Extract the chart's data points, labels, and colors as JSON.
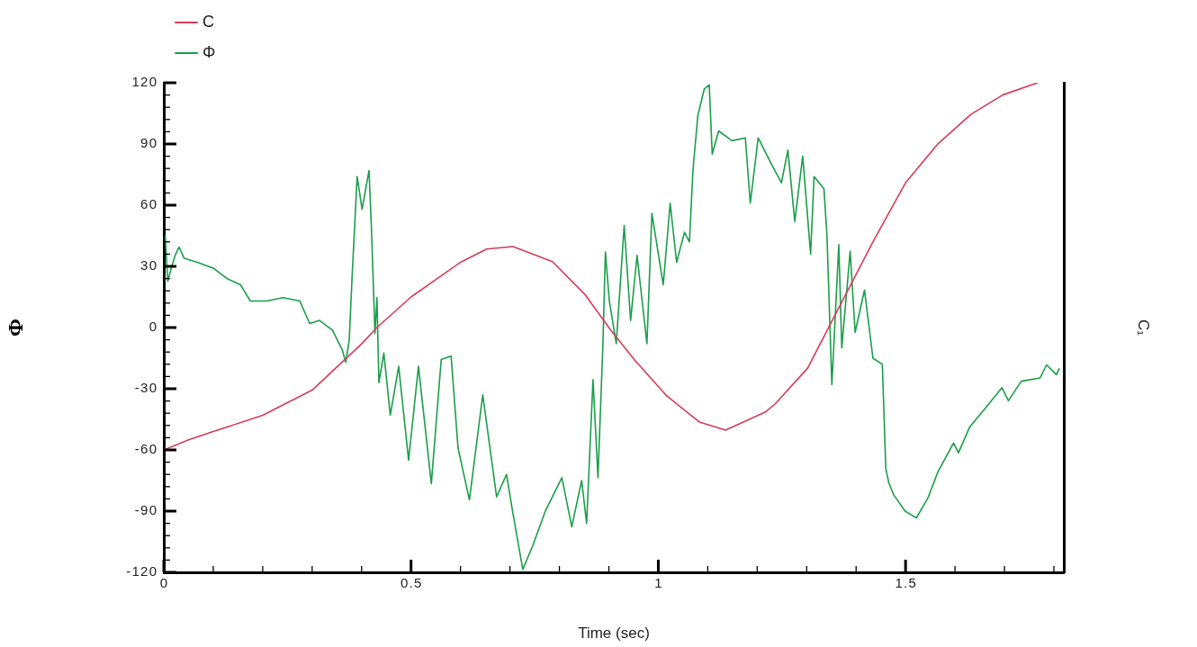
{
  "chart_data": {
    "type": "line",
    "xlabel": "Time (sec)",
    "ylabel": "Φ",
    "y2label": "C₁",
    "xlim": [
      0,
      1.82
    ],
    "xticks": [
      0,
      {
        "value": 0.1,
        "label": null
      },
      {
        "value": 0.2,
        "label": null
      },
      {
        "value": 0.3,
        "label": null
      },
      {
        "value": 0.4,
        "label": null
      },
      0.5,
      {
        "value": 0.6,
        "label": null
      },
      {
        "value": 0.7,
        "label": null
      },
      {
        "value": 0.8,
        "label": null
      },
      {
        "value": 0.9,
        "label": null
      },
      1,
      {
        "value": 1.1,
        "label": null
      },
      {
        "value": 1.2,
        "label": null
      },
      {
        "value": 1.3,
        "label": null
      },
      {
        "value": 1.4,
        "label": null
      },
      1.5,
      {
        "value": 1.6,
        "label": null
      },
      {
        "value": 1.7,
        "label": null
      },
      {
        "value": 1.8,
        "label": null
      }
    ],
    "ylim": [
      -120,
      120
    ],
    "yticks": [
      -120,
      {
        "value": -114,
        "label": null
      },
      {
        "value": -108,
        "label": null
      },
      {
        "value": -102,
        "label": null
      },
      {
        "value": -96,
        "label": null
      },
      -90,
      {
        "value": -84,
        "label": null
      },
      {
        "value": -78,
        "label": null
      },
      {
        "value": -72,
        "label": null
      },
      {
        "value": -66,
        "label": null
      },
      -60,
      {
        "value": -54,
        "label": null
      },
      {
        "value": -48,
        "label": null
      },
      {
        "value": -42,
        "label": null
      },
      {
        "value": -36,
        "label": null
      },
      -30,
      {
        "value": -24,
        "label": null
      },
      {
        "value": -18,
        "label": null
      },
      {
        "value": -12,
        "label": null
      },
      {
        "value": -6,
        "label": null
      },
      0,
      {
        "value": 6,
        "label": null
      },
      {
        "value": 12,
        "label": null
      },
      {
        "value": 18,
        "label": null
      },
      {
        "value": 24,
        "label": null
      },
      30,
      {
        "value": 36,
        "label": null
      },
      {
        "value": 42,
        "label": null
      },
      {
        "value": 48,
        "label": null
      },
      {
        "value": 54,
        "label": null
      },
      60,
      {
        "value": 66,
        "label": null
      },
      {
        "value": 72,
        "label": null
      },
      {
        "value": 78,
        "label": null
      },
      {
        "value": 84,
        "label": null
      },
      90,
      {
        "value": 96,
        "label": null
      },
      {
        "value": 102,
        "label": null
      },
      {
        "value": 108,
        "label": null
      },
      {
        "value": 114,
        "label": null
      },
      120
    ],
    "tick_labels": "xy",
    "legend": "top left",
    "grid": false,
    "marker": "none",
    "line_style": "solid",
    "series": [
      {
        "name": "C",
        "color": "#d63a5a",
        "x": [
          0,
          0.05,
          0.1,
          0.2,
          0.3,
          0.4,
          0.431,
          0.5,
          0.6,
          0.653,
          0.706,
          0.786,
          0.851,
          0.904,
          0.952,
          1.017,
          1.083,
          1.136,
          1.216,
          1.236,
          1.302,
          1.367,
          1.434,
          1.5,
          1.566,
          1.632,
          1.697,
          1.767
        ],
        "values": [
          -60,
          -55,
          -51,
          -43,
          -30.7,
          -8,
          0,
          15,
          32,
          38.5,
          39.7,
          32.3,
          16.4,
          -1.3,
          -15.9,
          -33.5,
          -46.3,
          -50.3,
          -41.5,
          -37.5,
          -19.9,
          10.6,
          42,
          71,
          90.2,
          104.5,
          114.1,
          120
        ]
      },
      {
        "name": "Φ",
        "color": "#1a9e4a",
        "x": [
          0.003,
          0.008,
          0.015,
          0.023,
          0.031,
          0.041,
          0.068,
          0.101,
          0.128,
          0.155,
          0.175,
          0.208,
          0.241,
          0.275,
          0.295,
          0.315,
          0.341,
          0.361,
          0.368,
          0.375,
          0.381,
          0.391,
          0.401,
          0.415,
          0.42,
          0.427,
          0.431,
          0.435,
          0.445,
          0.458,
          0.475,
          0.495,
          0.515,
          0.541,
          0.561,
          0.581,
          0.595,
          0.618,
          0.645,
          0.673,
          0.693,
          0.706,
          0.726,
          0.746,
          0.772,
          0.805,
          0.825,
          0.845,
          0.855,
          0.868,
          0.878,
          0.888,
          0.893,
          0.901,
          0.915,
          0.931,
          0.944,
          0.957,
          0.977,
          0.987,
          1.01,
          1.024,
          1.037,
          1.053,
          1.063,
          1.07,
          1.08,
          1.093,
          1.103,
          1.109,
          1.122,
          1.149,
          1.176,
          1.186,
          1.202,
          1.229,
          1.249,
          1.262,
          1.276,
          1.292,
          1.308,
          1.315,
          1.335,
          1.341,
          1.351,
          1.365,
          1.371,
          1.388,
          1.398,
          1.417,
          1.434,
          1.453,
          1.46,
          1.466,
          1.476,
          1.499,
          1.522,
          1.545,
          1.565,
          1.597,
          1.607,
          1.63,
          1.663,
          1.695,
          1.708,
          1.734,
          1.772,
          1.785,
          1.805,
          1.811
        ],
        "values": [
          45,
          22.7,
          29,
          35.5,
          39.5,
          34,
          32,
          29,
          24,
          21,
          13,
          13,
          14.7,
          13,
          2,
          3.5,
          -1.3,
          -11,
          -17,
          -6,
          26,
          74,
          58,
          77,
          48,
          -3,
          14.7,
          -27,
          -12.5,
          -43,
          -19,
          -65,
          -19,
          -76.5,
          -15.7,
          -14,
          -59,
          -84.5,
          -33,
          -83,
          -72,
          -91,
          -118.6,
          -107,
          -89.7,
          -73.6,
          -97.7,
          -75,
          -96,
          -25.5,
          -73.6,
          -7.9,
          37,
          13,
          -7.9,
          50,
          3.4,
          35.4,
          -7.9,
          56,
          21,
          61,
          32,
          46.7,
          42,
          77,
          104,
          117,
          119,
          85,
          96.4,
          91.6,
          93,
          61,
          93,
          80,
          71,
          87,
          52,
          84,
          36,
          74,
          68,
          45.5,
          -28,
          40.7,
          -10,
          37.5,
          -2.3,
          18.4,
          -15,
          -18,
          -69,
          -76,
          -82,
          -90,
          -93.3,
          -83.7,
          -71,
          -56.6,
          -61.4,
          -48.6,
          -39,
          -29.5,
          -35.9,
          -26.3,
          -24.7,
          -18.3,
          -23.1,
          -20
        ]
      }
    ]
  }
}
